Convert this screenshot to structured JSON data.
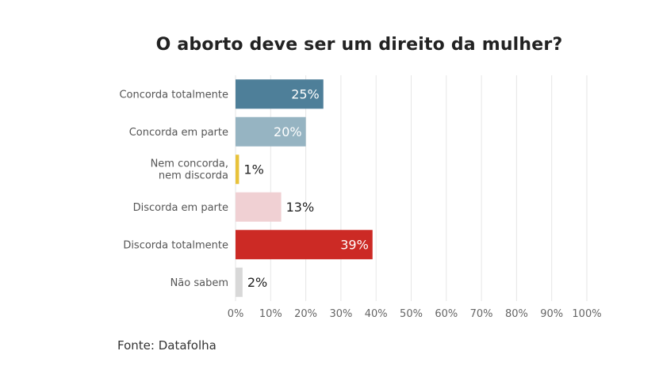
{
  "chart_data": {
    "type": "bar",
    "orientation": "horizontal",
    "title": "O aborto deve ser um direito da mulher?",
    "categories": [
      "Concorda totalmente",
      "Concorda em parte",
      "Nem concorda, nem discorda",
      "Discorda em parte",
      "Discorda totalmente",
      "Não sabem"
    ],
    "values": [
      25,
      20,
      1,
      13,
      39,
      2
    ],
    "value_labels": [
      "25%",
      "20%",
      "1%",
      "13%",
      "39%",
      "2%"
    ],
    "colors": [
      "#4e7f99",
      "#96b4c2",
      "#e8c23a",
      "#f0d0d3",
      "#cc2a25",
      "#d8d8d8"
    ],
    "xlim": [
      0,
      100
    ],
    "x_ticks": [
      "0%",
      "10%",
      "20%",
      "30%",
      "40%",
      "50%",
      "60%",
      "70%",
      "80%",
      "90%",
      "100%"
    ],
    "grid": true,
    "source": "Fonte: Datafolha"
  }
}
